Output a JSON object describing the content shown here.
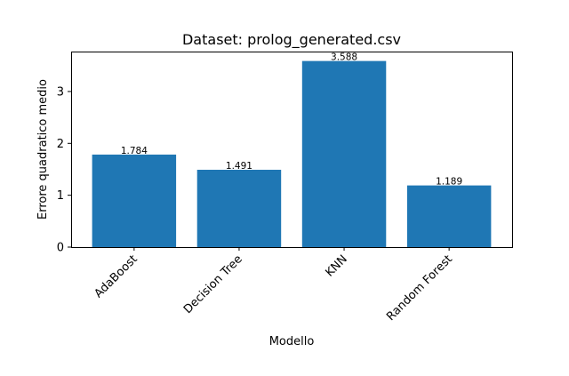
{
  "chart_data": {
    "type": "bar",
    "title": "Dataset: prolog_generated.csv",
    "xlabel": "Modello",
    "ylabel": "Errore quadratico medio",
    "categories": [
      "AdaBoost",
      "Decision Tree",
      "KNN",
      "Random Forest"
    ],
    "values": [
      1.784,
      1.491,
      3.588,
      1.189
    ],
    "value_labels": [
      "1.784",
      "1.491",
      "3.588",
      "1.189"
    ],
    "yticks": [
      0,
      1,
      2,
      3
    ],
    "ytick_labels": [
      "0",
      "1",
      "2",
      "3"
    ],
    "ylim": [
      0,
      3.77
    ],
    "grid": false,
    "legend": "none",
    "bar_color": "#1f77b4"
  }
}
